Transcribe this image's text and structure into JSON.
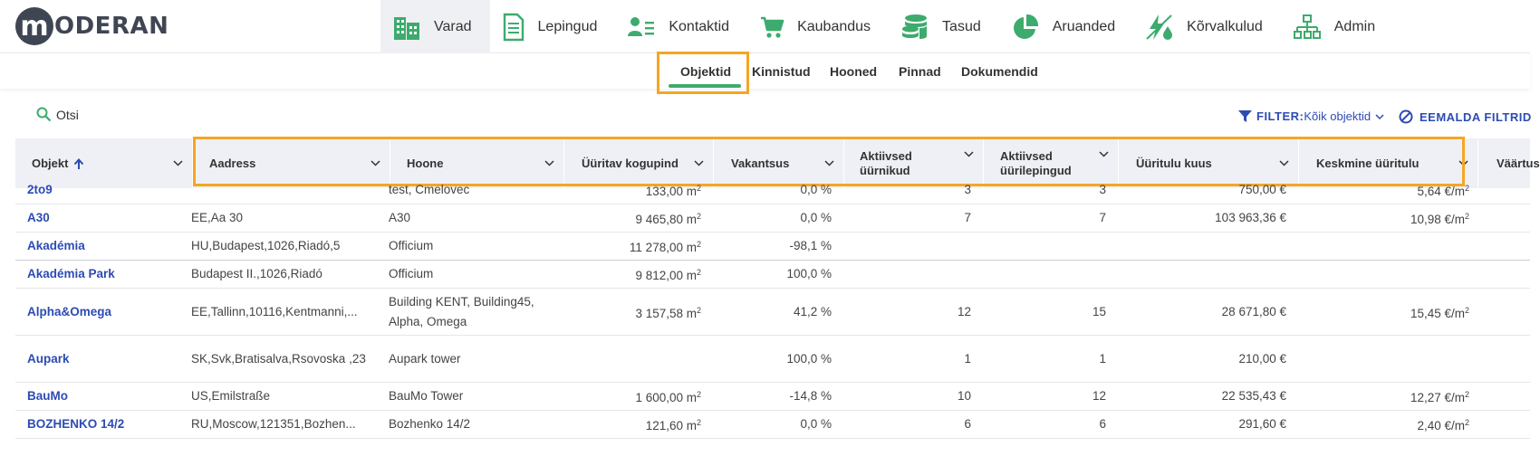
{
  "logo": {
    "letter": "m",
    "text": "ODERAN"
  },
  "nav": [
    {
      "label": "Varad",
      "icon": "buildings-icon",
      "active": true
    },
    {
      "label": "Lepingud",
      "icon": "document-icon"
    },
    {
      "label": "Kontaktid",
      "icon": "contacts-icon"
    },
    {
      "label": "Kaubandus",
      "icon": "cart-icon"
    },
    {
      "label": "Tasud",
      "icon": "coins-icon"
    },
    {
      "label": "Aruanded",
      "icon": "pie-chart-icon"
    },
    {
      "label": "Kõrvalkulud",
      "icon": "utilities-icon"
    },
    {
      "label": "Admin",
      "icon": "org-chart-icon"
    }
  ],
  "subtabs": [
    "Objektid",
    "Kinnistud",
    "Hooned",
    "Pinnad",
    "Dokumendid"
  ],
  "toolbar": {
    "search_label": "Otsi",
    "filter_label": "FILTER:",
    "filter_value": "Kõik objektid",
    "remove_label": "EEMALDA FILTRID"
  },
  "colors": {
    "accent_green": "#3dab6d",
    "link_blue": "#2c4bb3",
    "highlight": "#f5a623",
    "header_bg": "#eef0f6"
  },
  "columns": [
    "Objekt",
    "Aadress",
    "Hoone",
    "Üüritav kogupind",
    "Vakantsus",
    "Aktiivsed üürnikud",
    "Aktiivsed üürilepingud",
    "Üüritulu kuus",
    "Keskmine üüritulu",
    "Väärtus"
  ],
  "rows": [
    {
      "name": "2to9",
      "address": "",
      "building": "test, Cmelovec",
      "area": "133,00 m²",
      "vacancy": "0,0 %",
      "tenants": "3",
      "leases": "3",
      "income": "750,00 €",
      "avg": "5,64 €/m²"
    },
    {
      "name": "A30",
      "address": "EE,Aa 30",
      "building": "A30",
      "area": "9 465,80 m²",
      "vacancy": "0,0 %",
      "tenants": "7",
      "leases": "7",
      "income": "103 963,36 €",
      "avg": "10,98 €/m²"
    },
    {
      "name": "Akadémia",
      "address": "HU,Budapest,1026,Riadó,5",
      "building": "Officium",
      "area": "11 278,00 m²",
      "vacancy": "-98,1 %",
      "tenants": "",
      "leases": "",
      "income": "",
      "avg": ""
    },
    {
      "name": "Akadémia Park",
      "address": "Budapest II.,1026,Riadó",
      "building": "Officium",
      "area": "9 812,00 m²",
      "vacancy": "100,0 %",
      "tenants": "",
      "leases": "",
      "income": "",
      "avg": ""
    },
    {
      "name": "Alpha&Omega",
      "address": "EE,Tallinn,10116,Kentmanni,...",
      "building": "Building KENT, Building45, Alpha, Omega",
      "area": "3 157,58 m²",
      "vacancy": "41,2 %",
      "tenants": "12",
      "leases": "15",
      "income": "28 671,80 €",
      "avg": "15,45 €/m²"
    },
    {
      "name": "Aupark",
      "address": "SK,Svk,Bratisalva,Rsovoska ,23",
      "building": "Aupark tower",
      "area": "",
      "vacancy": "100,0 %",
      "tenants": "1",
      "leases": "1",
      "income": "210,00 €",
      "avg": ""
    },
    {
      "name": "BauMo",
      "address": "US,Emilstraße",
      "building": "BauMo Tower",
      "area": "1 600,00 m²",
      "vacancy": "-14,8 %",
      "tenants": "10",
      "leases": "12",
      "income": "22 535,43 €",
      "avg": "12,27 €/m²"
    },
    {
      "name": "BOZHENKO 14/2",
      "address": "RU,Moscow,121351,Bozhen...",
      "building": "Bozhenko 14/2",
      "area": "121,60 m²",
      "vacancy": "0,0 %",
      "tenants": "6",
      "leases": "6",
      "income": "291,60 €",
      "avg": "2,40 €/m²"
    }
  ]
}
